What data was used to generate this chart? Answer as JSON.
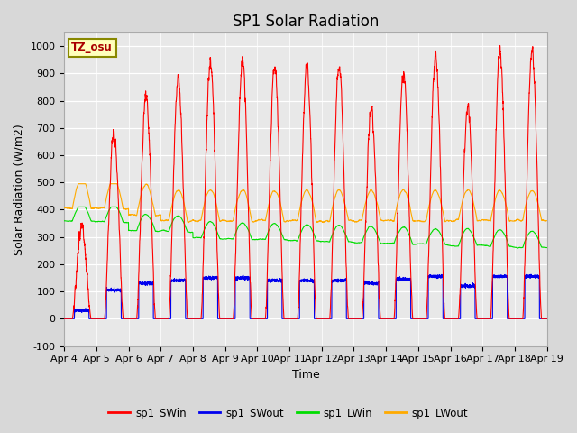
{
  "title": "SP1 Solar Radiation",
  "ylabel": "Solar Radiation (W/m2)",
  "xlabel": "Time",
  "ylim": [
    -100,
    1050
  ],
  "yticks": [
    -100,
    0,
    100,
    200,
    300,
    400,
    500,
    600,
    700,
    800,
    900,
    1000
  ],
  "x_tick_labels": [
    "Apr 4",
    "Apr 5",
    "Apr 6",
    "Apr 7",
    "Apr 8",
    "Apr 9",
    "Apr 10",
    "Apr 11",
    "Apr 12",
    "Apr 13",
    "Apr 14",
    "Apr 15",
    "Apr 16",
    "Apr 17",
    "Apr 18",
    "Apr 19"
  ],
  "n_days": 15,
  "colors": {
    "sp1_SWin": "#ff0000",
    "sp1_SWout": "#0000ee",
    "sp1_LWin": "#00dd00",
    "sp1_LWout": "#ffaa00"
  },
  "tz_label": "TZ_osu",
  "bg_color": "#d8d8d8",
  "plot_bg_color": "#e8e8e8",
  "title_fontsize": 12,
  "label_fontsize": 9,
  "tick_fontsize": 8,
  "day_peaks_SWin": [
    330,
    680,
    820,
    880,
    940,
    950,
    925,
    920,
    930,
    770,
    900,
    960,
    770,
    970,
    980
  ],
  "swout_day_values": [
    30,
    105,
    130,
    140,
    150,
    150,
    140,
    140,
    140,
    130,
    145,
    155,
    120,
    155,
    155
  ],
  "lw_out_day_peaks": [
    430,
    445,
    435,
    415,
    485,
    485,
    410,
    480,
    485,
    410,
    480,
    460,
    430,
    470,
    470
  ],
  "lw_in_base": 310,
  "lw_out_base": 360
}
